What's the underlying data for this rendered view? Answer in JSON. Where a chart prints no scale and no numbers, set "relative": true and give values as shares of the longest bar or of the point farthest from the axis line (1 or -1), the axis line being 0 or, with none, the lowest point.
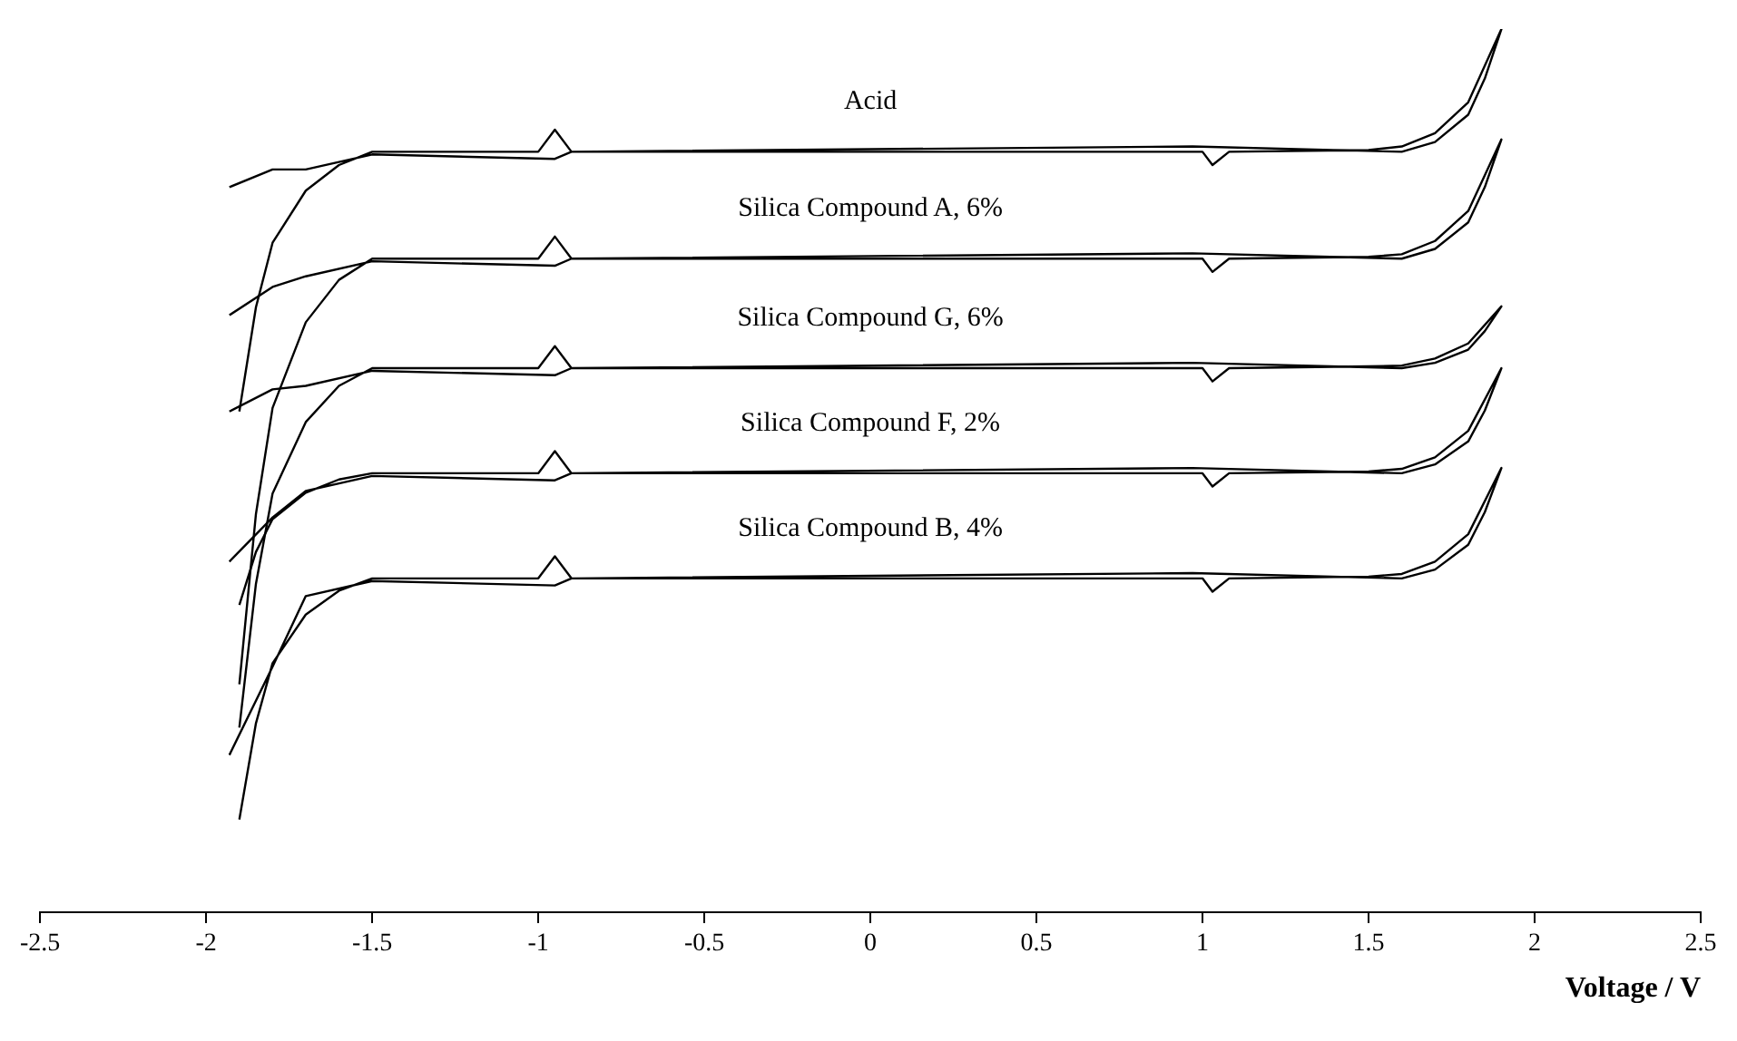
{
  "chart_data": {
    "type": "line",
    "relative": true,
    "xlabel": "Voltage / V",
    "xlim": [
      -2.5,
      2.5
    ],
    "xticks": [
      -2.5,
      -2,
      -1.5,
      -1,
      -0.5,
      0,
      0.5,
      1,
      1.5,
      2,
      2.5
    ],
    "legend": false,
    "marker": "none",
    "line_style": "solid",
    "series": [
      {
        "name": "Acid",
        "color": "#000000",
        "x": [
          -1.9,
          -1.85,
          -1.8,
          -1.7,
          -1.6,
          -1.5,
          -1.0,
          -0.95,
          -0.9,
          0,
          1.0,
          1.03,
          1.08,
          1.5,
          1.6,
          1.7,
          1.8,
          1.9,
          1.85,
          1.8,
          1.7,
          1.6,
          0.97,
          -0.9,
          -0.95,
          -1.5,
          -1.7,
          -1.8,
          -1.93
        ],
        "values": [
          0.567,
          0.685,
          0.758,
          0.817,
          0.846,
          0.861,
          0.861,
          0.886,
          0.861,
          0.861,
          0.861,
          0.846,
          0.861,
          0.863,
          0.867,
          0.882,
          0.917,
          1.0,
          0.944,
          0.903,
          0.872,
          0.861,
          0.867,
          0.861,
          0.853,
          0.858,
          0.841,
          0.841,
          0.821
        ]
      },
      {
        "name": "Silica Compound A, 6%",
        "color": "#000000",
        "x": [
          -1.9,
          -1.85,
          -1.8,
          -1.7,
          -1.6,
          -1.5,
          -1.0,
          -0.95,
          -0.9,
          0,
          1.0,
          1.03,
          1.08,
          1.5,
          1.6,
          1.7,
          1.8,
          1.9,
          1.85,
          1.8,
          1.7,
          1.6,
          0.97,
          -0.9,
          -0.95,
          -1.5,
          -1.7,
          -1.8,
          -1.93
        ],
        "values": [
          0.258,
          0.451,
          0.571,
          0.668,
          0.716,
          0.74,
          0.74,
          0.765,
          0.74,
          0.74,
          0.74,
          0.725,
          0.74,
          0.742,
          0.745,
          0.76,
          0.794,
          0.875,
          0.821,
          0.781,
          0.751,
          0.74,
          0.746,
          0.74,
          0.732,
          0.737,
          0.72,
          0.708,
          0.676
        ]
      },
      {
        "name": "Silica Compound G, 6%",
        "color": "#000000",
        "x": [
          -1.9,
          -1.85,
          -1.8,
          -1.7,
          -1.6,
          -1.5,
          -1.0,
          -0.95,
          -0.9,
          0,
          1.0,
          1.03,
          1.08,
          1.5,
          1.6,
          1.7,
          1.8,
          1.9,
          1.85,
          1.8,
          1.7,
          1.6,
          0.97,
          -0.9,
          -0.95,
          -1.5,
          -1.7,
          -1.8,
          -1.93
        ],
        "values": [
          0.209,
          0.372,
          0.474,
          0.555,
          0.596,
          0.616,
          0.616,
          0.641,
          0.616,
          0.616,
          0.616,
          0.601,
          0.616,
          0.618,
          0.619,
          0.627,
          0.644,
          0.686,
          0.658,
          0.637,
          0.622,
          0.616,
          0.622,
          0.616,
          0.608,
          0.613,
          0.596,
          0.592,
          0.567
        ]
      },
      {
        "name": "Silica Compound F, 2%",
        "color": "#000000",
        "x": [
          -1.9,
          -1.85,
          -1.8,
          -1.7,
          -1.6,
          -1.5,
          -1.0,
          -0.95,
          -0.9,
          0,
          1.0,
          1.03,
          1.08,
          1.5,
          1.6,
          1.7,
          1.8,
          1.9,
          1.85,
          1.8,
          1.7,
          1.6,
          0.97,
          -0.9,
          -0.95,
          -1.5,
          -1.7,
          -1.8,
          -1.93
        ],
        "values": [
          0.348,
          0.408,
          0.445,
          0.475,
          0.49,
          0.497,
          0.497,
          0.522,
          0.497,
          0.497,
          0.497,
          0.482,
          0.497,
          0.499,
          0.502,
          0.515,
          0.545,
          0.616,
          0.568,
          0.533,
          0.507,
          0.497,
          0.503,
          0.497,
          0.489,
          0.494,
          0.477,
          0.447,
          0.397
        ]
      },
      {
        "name": "Silica Compound B, 4%",
        "color": "#000000",
        "x": [
          -1.9,
          -1.85,
          -1.8,
          -1.7,
          -1.6,
          -1.5,
          -1.0,
          -0.95,
          -0.9,
          0,
          1.0,
          1.03,
          1.08,
          1.5,
          1.6,
          1.7,
          1.8,
          1.9,
          1.85,
          1.8,
          1.7,
          1.6,
          0.97,
          -0.9,
          -0.95,
          -1.5,
          -1.7,
          -1.8,
          -1.93
        ],
        "values": [
          0.105,
          0.214,
          0.282,
          0.337,
          0.364,
          0.378,
          0.378,
          0.403,
          0.378,
          0.378,
          0.378,
          0.363,
          0.378,
          0.38,
          0.383,
          0.397,
          0.428,
          0.503,
          0.453,
          0.416,
          0.388,
          0.378,
          0.384,
          0.378,
          0.37,
          0.375,
          0.358,
          0.278,
          0.178
        ]
      }
    ]
  }
}
